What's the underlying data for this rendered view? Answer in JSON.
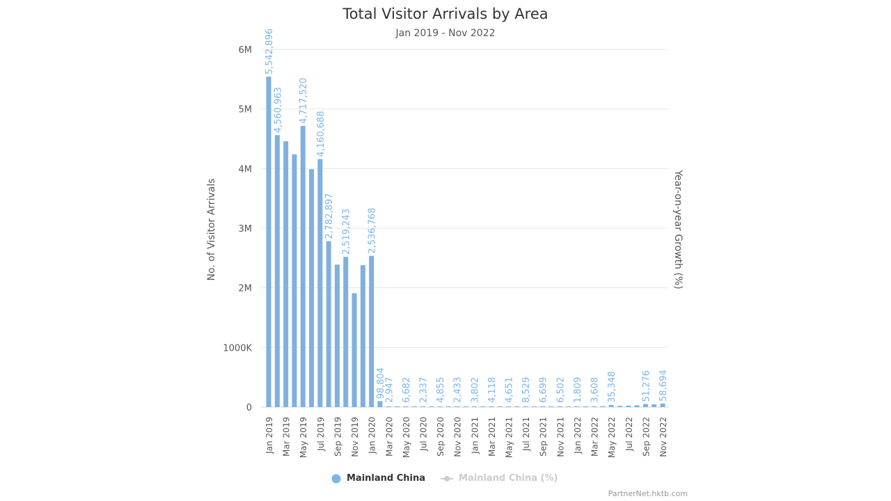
{
  "chart_data": {
    "type": "bar",
    "title": "Total Visitor Arrivals by Area",
    "subtitle": "Jan 2019 - Nov 2022",
    "ylabel": "No. of Visitor Arrivals",
    "ylabel_right": "Year-on-year Growth (%)",
    "ylim": [
      0,
      6000000
    ],
    "yticks": [
      "0",
      "1000K",
      "2M",
      "3M",
      "4M",
      "5M",
      "6M"
    ],
    "grid": true,
    "color": "#7fb0de",
    "label_color": "#7cb5ec",
    "categories": [
      "Jan 2019",
      "Feb 2019",
      "Mar 2019",
      "Apr 2019",
      "May 2019",
      "Jun 2019",
      "Jul 2019",
      "Aug 2019",
      "Sep 2019",
      "Oct 2019",
      "Nov 2019",
      "Dec 2019",
      "Jan 2020",
      "Feb 2020",
      "Mar 2020",
      "Apr 2020",
      "May 2020",
      "Jun 2020",
      "Jul 2020",
      "Aug 2020",
      "Sep 2020",
      "Oct 2020",
      "Nov 2020",
      "Dec 2020",
      "Jan 2021",
      "Feb 2021",
      "Mar 2021",
      "Apr 2021",
      "May 2021",
      "Jun 2021",
      "Jul 2021",
      "Aug 2021",
      "Sep 2021",
      "Oct 2021",
      "Nov 2021",
      "Dec 2021",
      "Jan 2022",
      "Feb 2022",
      "Mar 2022",
      "Apr 2022",
      "May 2022",
      "Jun 2022",
      "Jul 2022",
      "Aug 2022",
      "Sep 2022",
      "Oct 2022",
      "Nov 2022"
    ],
    "series": [
      {
        "name": "Mainland China",
        "values": [
          5542896,
          4560963,
          4460000,
          4240000,
          4717520,
          3990000,
          4160688,
          2782897,
          2390000,
          2519243,
          1910000,
          2380000,
          2536768,
          98804,
          2947,
          1500,
          6682,
          3000,
          2337,
          3500,
          4855,
          3000,
          2433,
          3000,
          3802,
          3500,
          4118,
          4000,
          4651,
          6000,
          8529,
          7000,
          6699,
          6500,
          6502,
          4000,
          1809,
          2500,
          3608,
          15000,
          35348,
          20000,
          25000,
          30000,
          51276,
          45000,
          58694
        ],
        "data_labels": [
          "5,542,896",
          "4,560,963",
          null,
          null,
          "4,717,520",
          null,
          "4,160,688",
          "2,782,897",
          null,
          "2,519,243",
          null,
          null,
          "2,536,768",
          "98,804",
          "2,947",
          null,
          "6,682",
          null,
          "2,337",
          null,
          "4,855",
          null,
          "2,433",
          null,
          "3,802",
          null,
          "4,118",
          null,
          "4,651",
          null,
          "8,529",
          null,
          "6,699",
          null,
          "6,502",
          null,
          "1,809",
          null,
          "3,608",
          null,
          "35,348",
          null,
          null,
          null,
          "51,276",
          null,
          "58,694"
        ]
      }
    ],
    "legend": {
      "placement": "bottom",
      "items": [
        "Mainland China",
        "Mainland China (%)"
      ],
      "colors": [
        "#7cb5ec",
        "#cccccc"
      ]
    }
  },
  "credit": "PartnerNet.hktb.com"
}
